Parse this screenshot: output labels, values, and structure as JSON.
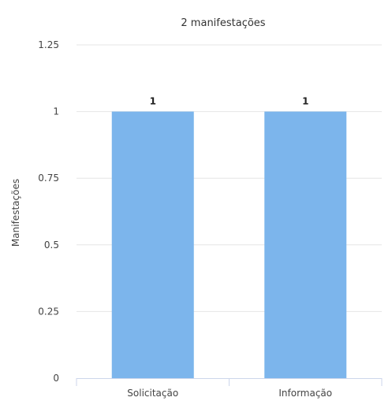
{
  "chart_data": {
    "type": "bar",
    "title": "2 manifestações",
    "ylabel": "Manifestações",
    "xlabel": "",
    "categories": [
      "Solicitação",
      "Informação"
    ],
    "values": [
      1,
      1
    ],
    "data_labels": [
      "1",
      "1"
    ],
    "ylim": [
      0,
      1.25
    ],
    "yticks": [
      0,
      0.25,
      0.5,
      0.75,
      1,
      1.25
    ],
    "ytick_labels": [
      "0",
      "0.25",
      "0.5",
      "0.75",
      "1",
      "1.25"
    ],
    "grid": true,
    "legend": "none",
    "bar_color": "#7cb5ec"
  }
}
